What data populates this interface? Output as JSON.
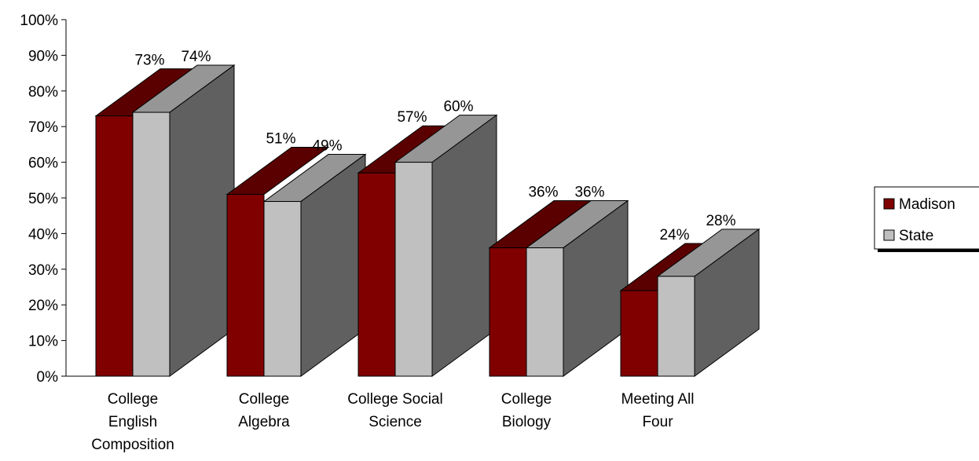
{
  "chart_data": {
    "type": "bar",
    "categories": [
      [
        "College",
        "English",
        "Composition"
      ],
      [
        "College",
        "Algebra"
      ],
      [
        "College Social",
        "Science"
      ],
      [
        "College",
        "Biology"
      ],
      [
        "Meeting All",
        "Four"
      ]
    ],
    "series": [
      {
        "name": "Madison",
        "values": [
          73,
          51,
          57,
          36,
          24
        ],
        "labels": [
          "73%",
          "51%",
          "57%",
          "36%",
          "24%"
        ]
      },
      {
        "name": "State",
        "values": [
          74,
          49,
          60,
          36,
          28
        ],
        "labels": [
          "74%",
          "49%",
          "60%",
          "36%",
          "28%"
        ]
      }
    ],
    "y_ticks": [
      "0%",
      "10%",
      "20%",
      "30%",
      "40%",
      "50%",
      "60%",
      "70%",
      "80%",
      "90%",
      "100%"
    ],
    "ylim": [
      0,
      100
    ],
    "title": "",
    "xlabel": "",
    "ylabel": "",
    "grid": false,
    "style": "3d-bar",
    "legend_position": "right",
    "colors": {
      "madison_front": "#800000",
      "madison_top": "#5a0000",
      "state_front": "#c0c0c0",
      "state_top": "#969696",
      "side": "#606060"
    }
  }
}
